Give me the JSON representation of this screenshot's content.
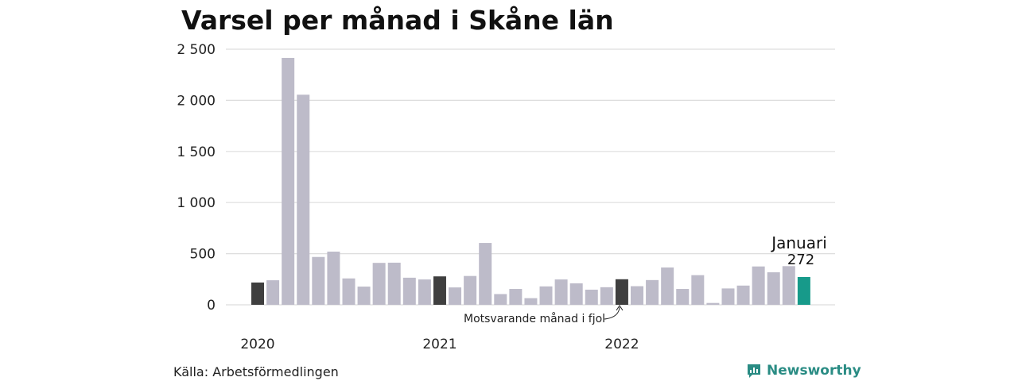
{
  "title": "Varsel per månad i Skåne län",
  "source": "Källa: Arbetsförmedlingen",
  "brand": {
    "name": "Newsworthy",
    "icon": "newsworthy-logo-icon"
  },
  "colors": {
    "bar": "#bdbbc9",
    "highlight": "#3f3f3f",
    "current": "#179a8a",
    "grid": "#dddddd",
    "brand": "#2a8c84"
  },
  "chart_data": {
    "type": "bar",
    "title": "Varsel per månad i Skåne län",
    "xlabel": "",
    "ylabel": "",
    "ylim": [
      0,
      2500
    ],
    "yticks": [
      0,
      500,
      1000,
      1500,
      2000,
      2500
    ],
    "ytick_labels": [
      "0",
      "500",
      "1 000",
      "1 500",
      "2 000",
      "2 500"
    ],
    "year_labels": [
      {
        "label": "2020",
        "index": 0
      },
      {
        "label": "2021",
        "index": 12
      },
      {
        "label": "2022",
        "index": 24
      }
    ],
    "grid": true,
    "values": [
      218,
      240,
      2415,
      2055,
      468,
      520,
      258,
      178,
      410,
      412,
      265,
      248,
      278,
      170,
      282,
      605,
      105,
      155,
      65,
      180,
      248,
      210,
      148,
      172,
      250,
      182,
      242,
      365,
      155,
      290,
      18,
      160,
      188,
      375,
      318,
      378,
      272
    ],
    "highlight_indices": [
      0,
      12,
      24
    ],
    "current_index": 36,
    "annotations": {
      "current_month": "Januari",
      "current_value": "272",
      "prior_year": "Motsvarande månad i fjol"
    }
  }
}
